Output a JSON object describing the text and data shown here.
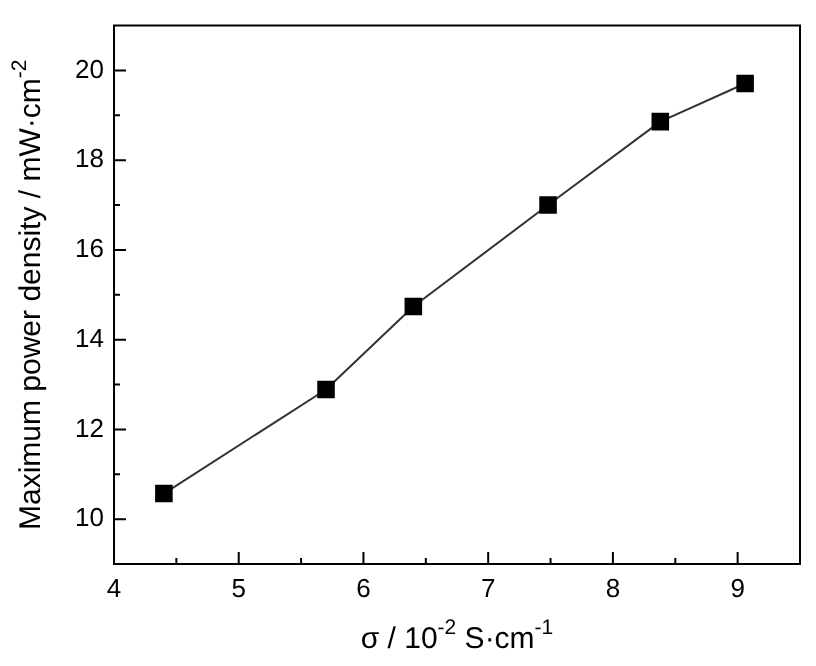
{
  "chart_data": {
    "type": "line",
    "xlabel": "σ / 10$^{-2}$ S·cm$^{-1}$",
    "ylabel": "Maximum power density / mW·cm$^{-2}$",
    "series": [
      {
        "color": "#000000",
        "x": [
          4.4,
          5.7,
          6.4,
          7.48,
          8.38,
          9.06
        ],
        "values": [
          10.57,
          12.89,
          14.74,
          17.0,
          18.86,
          19.71
        ]
      }
    ],
    "xlim": [
      4,
      9.5
    ],
    "xticks": [
      4,
      {
        "value": 4.5,
        "label": null
      },
      5,
      {
        "value": 5.5,
        "label": null
      },
      6,
      {
        "value": 6.5,
        "label": null
      },
      7,
      {
        "value": 7.5,
        "label": null
      },
      8,
      {
        "value": 8.5,
        "label": null
      },
      9
    ],
    "ylim": [
      9,
      21
    ],
    "yticks": [
      10,
      {
        "value": 11,
        "label": null
      },
      12,
      {
        "value": 13,
        "label": null
      },
      14,
      {
        "value": 15,
        "label": null
      },
      16,
      {
        "value": 17,
        "label": null
      },
      18,
      {
        "value": 19,
        "label": null
      },
      20
    ],
    "grid": false,
    "legend": false,
    "marker": "square",
    "line_style": "solid"
  }
}
